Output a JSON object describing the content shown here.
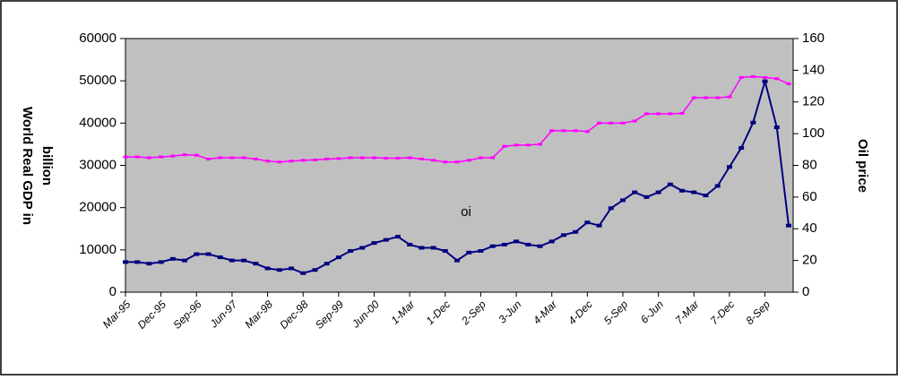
{
  "chart_data": {
    "type": "line",
    "ylabel": [
      "World Real GDP in",
      "billion"
    ],
    "y2label": "Oil price",
    "annotation": "oi",
    "categories": [
      "Mar-95",
      null,
      null,
      "Dec-95",
      null,
      null,
      "Sep-96",
      null,
      null,
      "Jun-97",
      null,
      null,
      "Mar-98",
      null,
      null,
      "Dec-98",
      null,
      null,
      "Sep-99",
      null,
      null,
      "Jun-00",
      null,
      null,
      "1-Mar",
      null,
      null,
      "1-Dec",
      null,
      null,
      "2-Sep",
      null,
      null,
      "3-Jun",
      null,
      null,
      "4-Mar",
      null,
      null,
      "4-Dec",
      null,
      null,
      "5-Sep",
      null,
      null,
      "6-Jun",
      null,
      null,
      "7-Mar",
      null,
      null,
      "7-Dec",
      null,
      null,
      "8-Sep",
      null,
      null
    ],
    "series": [
      {
        "color": "#ff00ff",
        "axis": "y",
        "values": [
          32000,
          32000,
          31800,
          32000,
          32200,
          32500,
          32400,
          31500,
          31800,
          31800,
          31800,
          31500,
          31000,
          30800,
          31000,
          31200,
          31300,
          31500,
          31600,
          31800,
          31800,
          31800,
          31700,
          31700,
          31800,
          31500,
          31200,
          30800,
          30800,
          31200,
          31800,
          31800,
          34500,
          34800,
          34800,
          35000,
          38200,
          38200,
          38200,
          38000,
          40000,
          40000,
          40000,
          40500,
          42200,
          42200,
          42200,
          42300,
          46000,
          46000,
          46000,
          46200,
          50800,
          51000,
          50800,
          50500,
          49300
        ]
      },
      {
        "color": "#000080",
        "axis": "y2",
        "values": [
          19,
          19,
          18,
          19,
          21,
          20,
          24,
          24,
          22,
          20,
          20,
          18,
          15,
          14,
          15,
          12,
          14,
          18,
          22,
          26,
          28,
          31,
          33,
          35,
          30,
          28,
          28,
          26,
          20,
          25,
          26,
          29,
          30,
          32,
          30,
          29,
          32,
          36,
          38,
          44,
          42,
          53,
          58,
          63,
          60,
          63,
          68,
          64,
          63,
          61,
          67,
          79,
          91,
          107,
          133,
          104,
          42
        ]
      }
    ],
    "ylim": [
      0,
      60000
    ],
    "yticks": [
      0,
      10000,
      20000,
      30000,
      40000,
      50000,
      60000
    ],
    "y2lim": [
      0,
      160
    ],
    "y2ticks": [
      0,
      20,
      40,
      60,
      80,
      100,
      120,
      140,
      160
    ],
    "plot_background": "#c0c0c0"
  }
}
